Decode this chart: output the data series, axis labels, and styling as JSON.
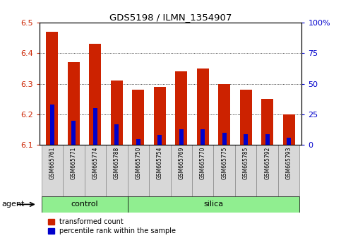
{
  "title": "GDS5198 / ILMN_1354907",
  "samples": [
    "GSM665761",
    "GSM665771",
    "GSM665774",
    "GSM665788",
    "GSM665750",
    "GSM665754",
    "GSM665769",
    "GSM665770",
    "GSM665775",
    "GSM665785",
    "GSM665792",
    "GSM665793"
  ],
  "groups": [
    "control",
    "control",
    "control",
    "control",
    "silica",
    "silica",
    "silica",
    "silica",
    "silica",
    "silica",
    "silica",
    "silica"
  ],
  "transformed_count": [
    6.47,
    6.37,
    6.43,
    6.31,
    6.28,
    6.29,
    6.34,
    6.35,
    6.3,
    6.28,
    6.25,
    6.2
  ],
  "percentile_rank": [
    33,
    20,
    30,
    17,
    5,
    8,
    13,
    13,
    10,
    9,
    9,
    6
  ],
  "ylim_left": [
    6.1,
    6.5
  ],
  "ylim_right": [
    0,
    100
  ],
  "yticks_left": [
    6.1,
    6.2,
    6.3,
    6.4,
    6.5
  ],
  "yticks_right": [
    0,
    25,
    50,
    75,
    100
  ],
  "bar_color_red": "#cc2200",
  "bar_color_blue": "#0000cc",
  "bar_width": 0.55,
  "baseline": 6.1,
  "group_label_bg": "#90ee90",
  "legend_labels": [
    "transformed count",
    "percentile rank within the sample"
  ],
  "xlabel_agent": "agent",
  "tick_fontsize": 8,
  "axis_left_color": "#cc2200",
  "axis_right_color": "#0000cc",
  "n_control": 4,
  "n_silica": 8
}
